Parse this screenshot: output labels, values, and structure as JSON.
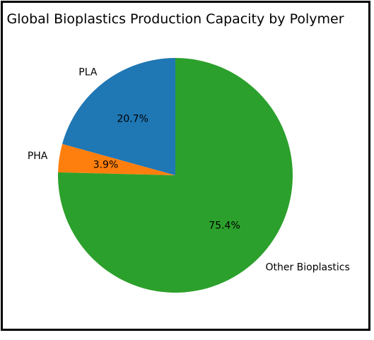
{
  "chart_data": {
    "type": "pie",
    "title": "Global Bioplastics Production Capacity by Polymer",
    "slices": [
      {
        "label": "PLA",
        "value": 20.7,
        "pct_label": "20.7%",
        "color": "#1f77b4"
      },
      {
        "label": "PHA",
        "value": 3.9,
        "pct_label": "3.9%",
        "color": "#ff7f0e"
      },
      {
        "label": "Other Bioplastics",
        "value": 75.4,
        "pct_label": "75.4%",
        "color": "#2ca02c"
      }
    ],
    "start_angle_deg": 90,
    "direction": "counterclockwise"
  }
}
